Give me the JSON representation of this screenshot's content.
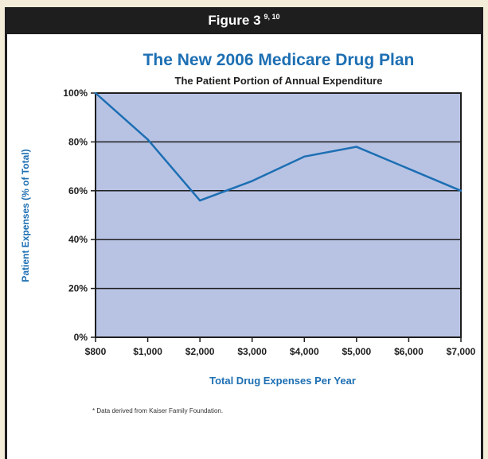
{
  "figure_header": {
    "label": "Figure 3",
    "refs": "9, 10"
  },
  "footnote": "* Data derived from Kaiser Family Foundation.",
  "colors": {
    "title": "#1d6fb3",
    "axis_title": "#1d6fb3",
    "plot_bg": "#b8c3e4",
    "series_line": "#1d6fb3",
    "grid": "#1e1e1e",
    "header_bg": "#1e1e1e"
  },
  "chart_data": {
    "type": "line",
    "title": "The New 2006 Medicare Drug Plan",
    "subtitle": "The Patient Portion of Annual Expenditure",
    "xlabel": "Total Drug Expenses Per Year",
    "ylabel": "Patient Expenses (% of Total)",
    "x_tick_labels": [
      "$800",
      "$1,000",
      "$2,000",
      "$3,000",
      "$4,000",
      "$5,000",
      "$6,000",
      "$7,000"
    ],
    "y_tick_labels": [
      "0%",
      "20%",
      "40%",
      "60%",
      "80%",
      "100%"
    ],
    "y_ticks": [
      0,
      20,
      40,
      60,
      80,
      100
    ],
    "ylim": [
      0,
      100
    ],
    "grid": true,
    "series": [
      {
        "x": [
          "$800",
          "$1,000",
          "$2,000",
          "$3,000",
          "$4,000",
          "$5,000",
          "$6,000",
          "$7,000"
        ],
        "values": [
          100,
          81,
          56,
          64,
          74,
          78,
          69,
          60
        ]
      }
    ]
  }
}
